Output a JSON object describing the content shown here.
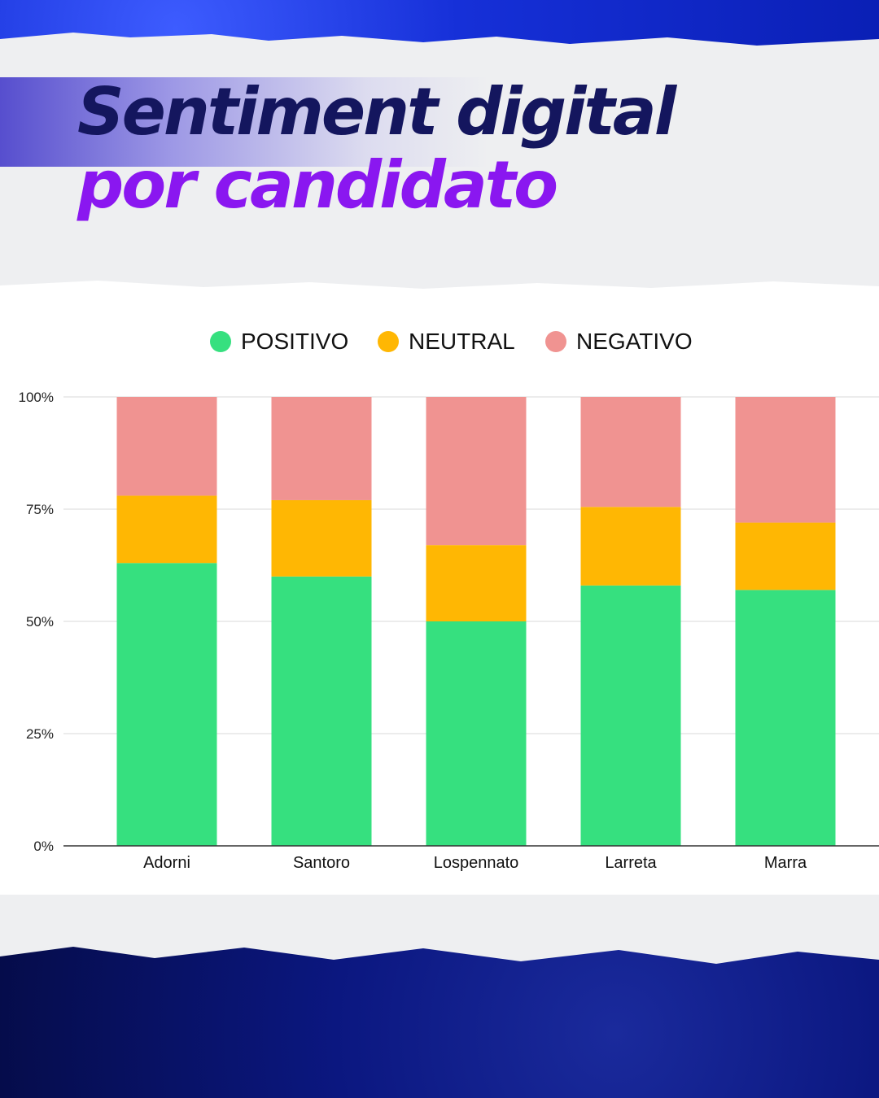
{
  "title": {
    "line1": "Sentiment digital",
    "line2": "por candidato"
  },
  "colors": {
    "positivo": "#36e07f",
    "neutral": "#ffb703",
    "negativo": "#f09391",
    "title_dark": "#14165e",
    "title_purple": "#8a17f0"
  },
  "chart_data": {
    "type": "bar",
    "stacked": true,
    "categories": [
      "Adorni",
      "Santoro",
      "Lospennato",
      "Larreta",
      "Marra"
    ],
    "series": [
      {
        "name": "POSITIVO",
        "values": [
          63,
          60,
          50,
          58,
          57
        ]
      },
      {
        "name": "NEUTRAL",
        "values": [
          15,
          17,
          17,
          17.5,
          15
        ]
      },
      {
        "name": "NEGATIVO",
        "values": [
          22,
          23,
          33,
          24.5,
          28
        ]
      }
    ],
    "ylim": [
      0,
      100
    ],
    "yticks": [
      0,
      25,
      50,
      75,
      100
    ],
    "ytick_labels": [
      "0%",
      "25%",
      "50%",
      "75%",
      "100%"
    ],
    "legend": "top",
    "grid": true
  }
}
